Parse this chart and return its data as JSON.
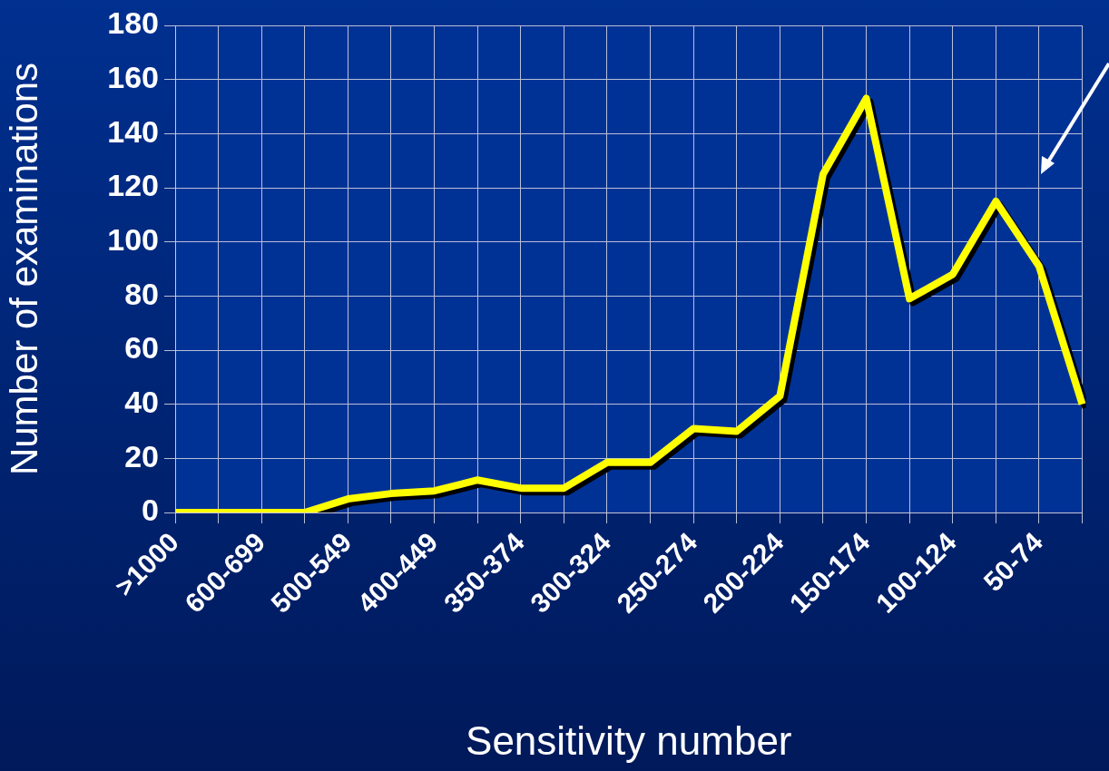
{
  "chart_data": {
    "type": "line",
    "xlabel": "Sensitivity number",
    "ylabel": "Number of examinations",
    "categories": [
      ">1000",
      null,
      "600-699",
      null,
      "500-549",
      null,
      "400-449",
      null,
      "350-374",
      null,
      "300-324",
      null,
      "250-274",
      null,
      "200-224",
      null,
      "150-174",
      null,
      "100-124",
      null,
      "50-74",
      null
    ],
    "series": [
      {
        "color": "#ffff00",
        "values": [
          0,
          0,
          0,
          0,
          5,
          7,
          8,
          12,
          9,
          9,
          18.5,
          18.5,
          31,
          30,
          43,
          125,
          153,
          79,
          88,
          115,
          91,
          40
        ]
      }
    ],
    "ylim": [
      0,
      180
    ],
    "yticks": [
      0,
      20,
      40,
      60,
      80,
      100,
      120,
      140,
      160,
      180
    ],
    "grid": true,
    "legend": false,
    "marker": "none",
    "line_style": "solid"
  }
}
